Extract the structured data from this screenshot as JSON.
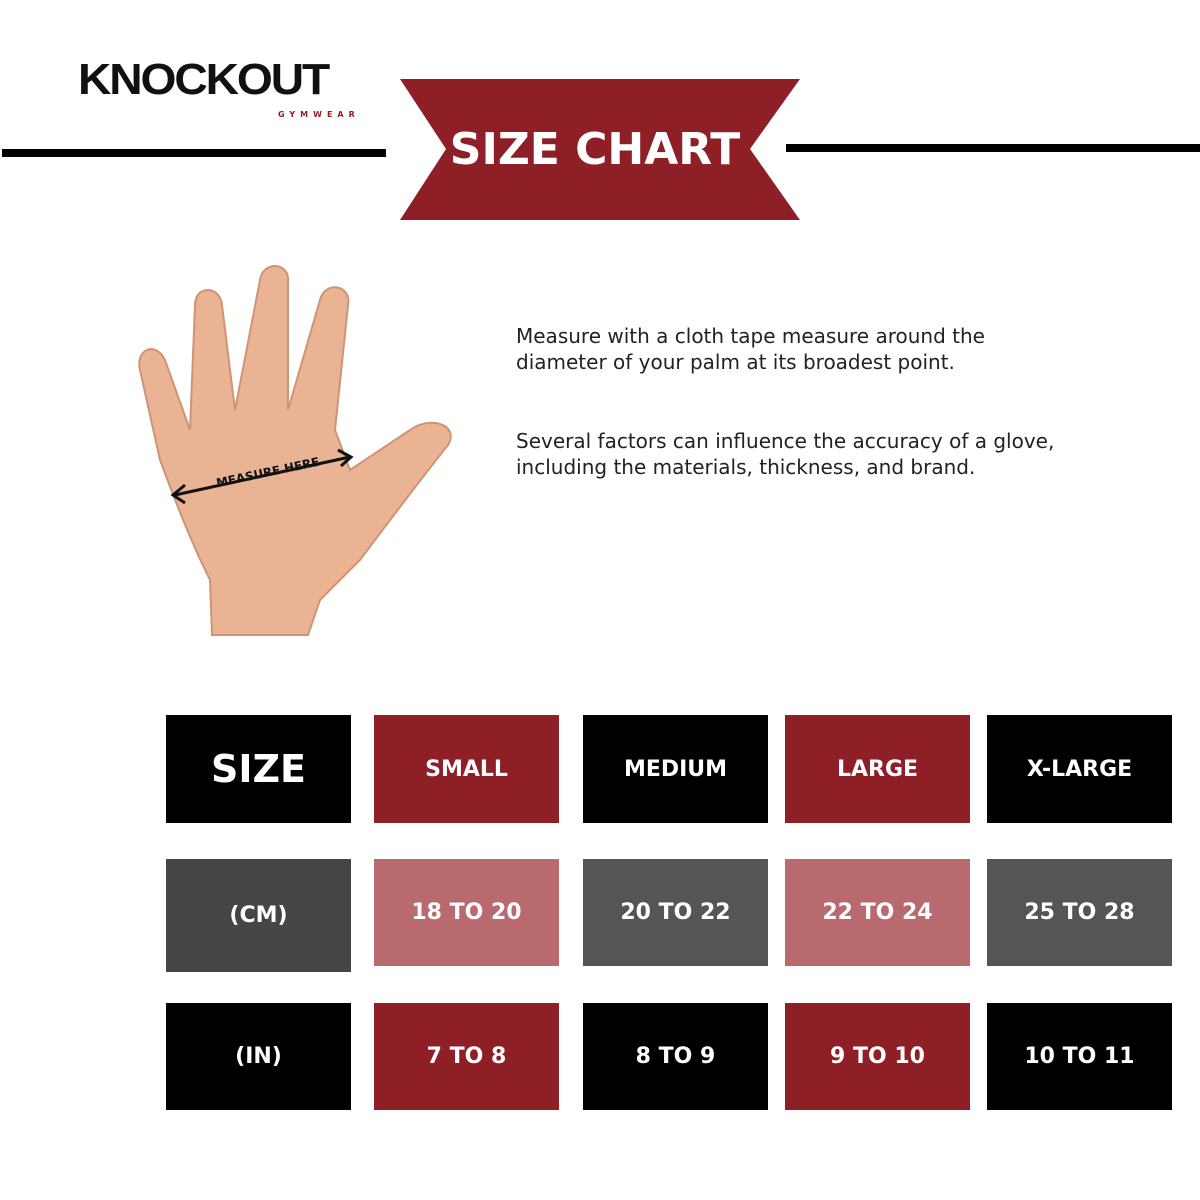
{
  "brand": {
    "name": "KNOCKOUT",
    "tagline": "GYMWEAR"
  },
  "banner": {
    "title": "SIZE CHART"
  },
  "instructions": [
    "Measure with a cloth tape measure around the diameter of your palm at its broadest point.",
    "Several factors can influence the accuracy of a glove, including the materials, thickness, and brand."
  ],
  "hand_image": {
    "label": "MEASURE HERE"
  },
  "colors": {
    "red": "#8f1f27",
    "pink": "#b86a6e",
    "black": "#000000",
    "dark_gray": "#454545",
    "gray": "#555555"
  },
  "table": {
    "headers": [
      "SIZE",
      "SMALL",
      "MEDIUM",
      "LARGE",
      "X-LARGE"
    ],
    "rows": [
      [
        "(CM)",
        "18 TO 20",
        "20 TO 22",
        "22 TO 24",
        "25 TO 28"
      ],
      [
        "(IN)",
        "7 TO 8",
        "8 TO 9",
        "9 TO 10",
        "10 TO 11"
      ]
    ]
  }
}
